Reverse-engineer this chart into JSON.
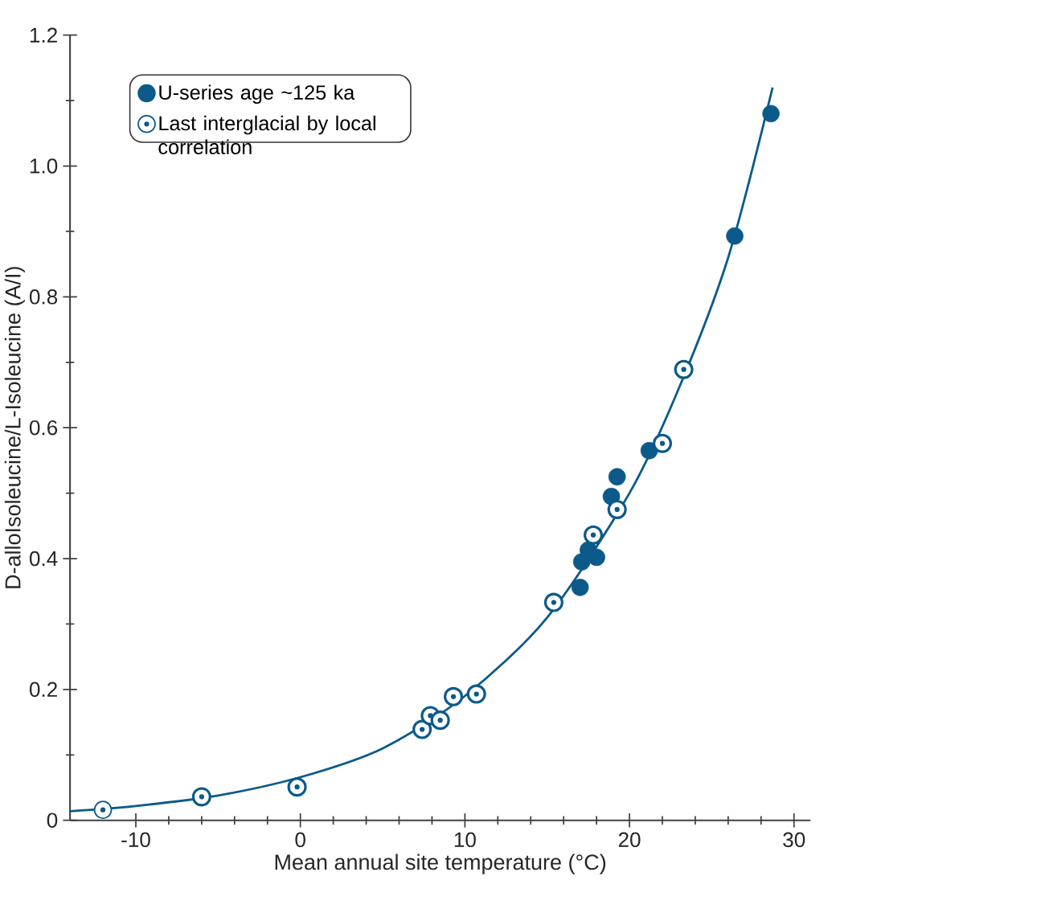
{
  "chart_data": {
    "type": "scatter",
    "xlabel": "Mean annual site temperature (°C)",
    "ylabel": "D-alloIsoleucine/L-Isoleucine (A/I)",
    "xlim": [
      -14,
      31
    ],
    "ylim": [
      0,
      1.2
    ],
    "xticks": [
      -10,
      0,
      10,
      20,
      30
    ],
    "yticks": [
      {
        "value": 0,
        "label": "0"
      },
      {
        "value": 0.2,
        "label": "0.2"
      },
      {
        "value": 0.4,
        "label": "0.4"
      },
      {
        "value": 0.6,
        "label": "0.6"
      },
      {
        "value": 0.8,
        "label": "0.8"
      },
      {
        "value": 1.0,
        "label": "1.0"
      },
      {
        "value": 1.2,
        "label": "1.2"
      }
    ],
    "legend": "top left",
    "grid": false,
    "series": [
      {
        "name": "U-series age ~125 ka",
        "color": "#0b5a8a",
        "marker": "circle",
        "x": [
          17.0,
          17.1,
          17.5,
          18.0,
          18.9,
          19.25,
          21.2,
          26.4,
          28.6
        ],
        "values": [
          0.356,
          0.395,
          0.413,
          0.402,
          0.495,
          0.525,
          0.565,
          0.893,
          1.08
        ]
      },
      {
        "name": "Last interglacial by local correlation",
        "color": "#0b5a8a",
        "marker": "circle",
        "x": [
          -12.0,
          -6.0,
          -0.2,
          7.4,
          7.9,
          8.5,
          9.3,
          10.7,
          15.4,
          17.8,
          19.25,
          22.0,
          23.3
        ],
        "values": [
          0.016,
          0.036,
          0.051,
          0.139,
          0.16,
          0.153,
          0.189,
          0.193,
          0.333,
          0.436,
          0.475,
          0.576,
          0.689
        ]
      },
      {
        "type": "line",
        "color": "#0b5a8a",
        "x": [
          -14,
          -10,
          -5,
          0,
          5,
          10,
          15,
          20,
          23,
          26,
          28.7
        ],
        "values": [
          0.014,
          0.022,
          0.038,
          0.066,
          0.11,
          0.19,
          0.31,
          0.5,
          0.66,
          0.86,
          1.12
        ]
      }
    ]
  }
}
